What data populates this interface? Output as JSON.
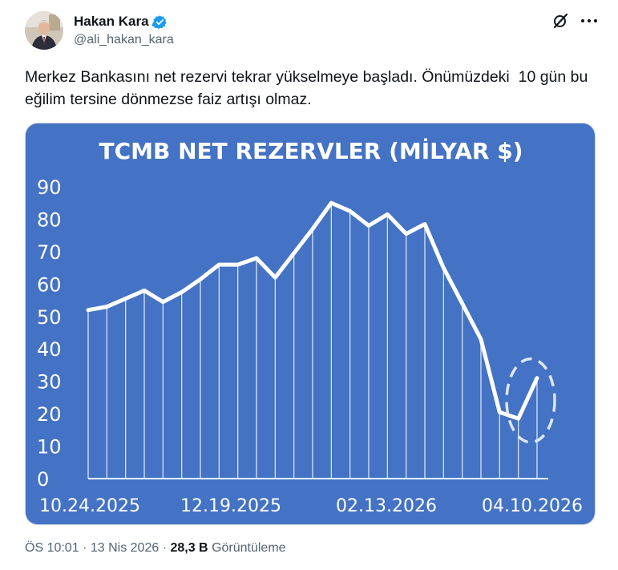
{
  "author": {
    "name": "Hakan Kara",
    "handle": "@ali_hakan_kara",
    "avatar_icon": "avatar-photo",
    "verified_color": "#1d9bf0"
  },
  "actions": {
    "grok_icon": "grok-slash-icon",
    "more_icon": "more-dots-icon"
  },
  "tweet": {
    "text": "Merkez Bankasını net rezervi tekrar yükselmeye başladı. Önümüzdeki  10 gün bu eğilim tersine dönmezse faiz artışı olmaz."
  },
  "chart_data": {
    "type": "line",
    "title": "TCMB NET REZERVLER (MİLYAR $)",
    "xlabel": "",
    "ylabel": "",
    "ylim": [
      0,
      90
    ],
    "yticks": [
      "0",
      "10",
      "20",
      "30",
      "40",
      "50",
      "60",
      "70",
      "80",
      "90"
    ],
    "x_tick_labels": [
      "10.24.2025",
      "12.19.2025",
      "02.13.2026",
      "04.10.2026"
    ],
    "values": [
      52,
      53,
      55.5,
      58,
      54.5,
      57.5,
      61.5,
      66,
      66,
      68,
      62,
      69.5,
      77,
      85,
      82.5,
      78,
      81.5,
      75.5,
      78.5,
      65,
      54,
      43,
      20.5,
      18.5,
      31
    ],
    "background_color": "#4472c4",
    "line_color": "#ffffff",
    "highlight_last_point": true,
    "grid": false
  },
  "meta": {
    "time": "ÖS 10:01",
    "date": "13 Nis 2026",
    "views_count": "28,3 B",
    "views_label": "Görüntüleme"
  }
}
